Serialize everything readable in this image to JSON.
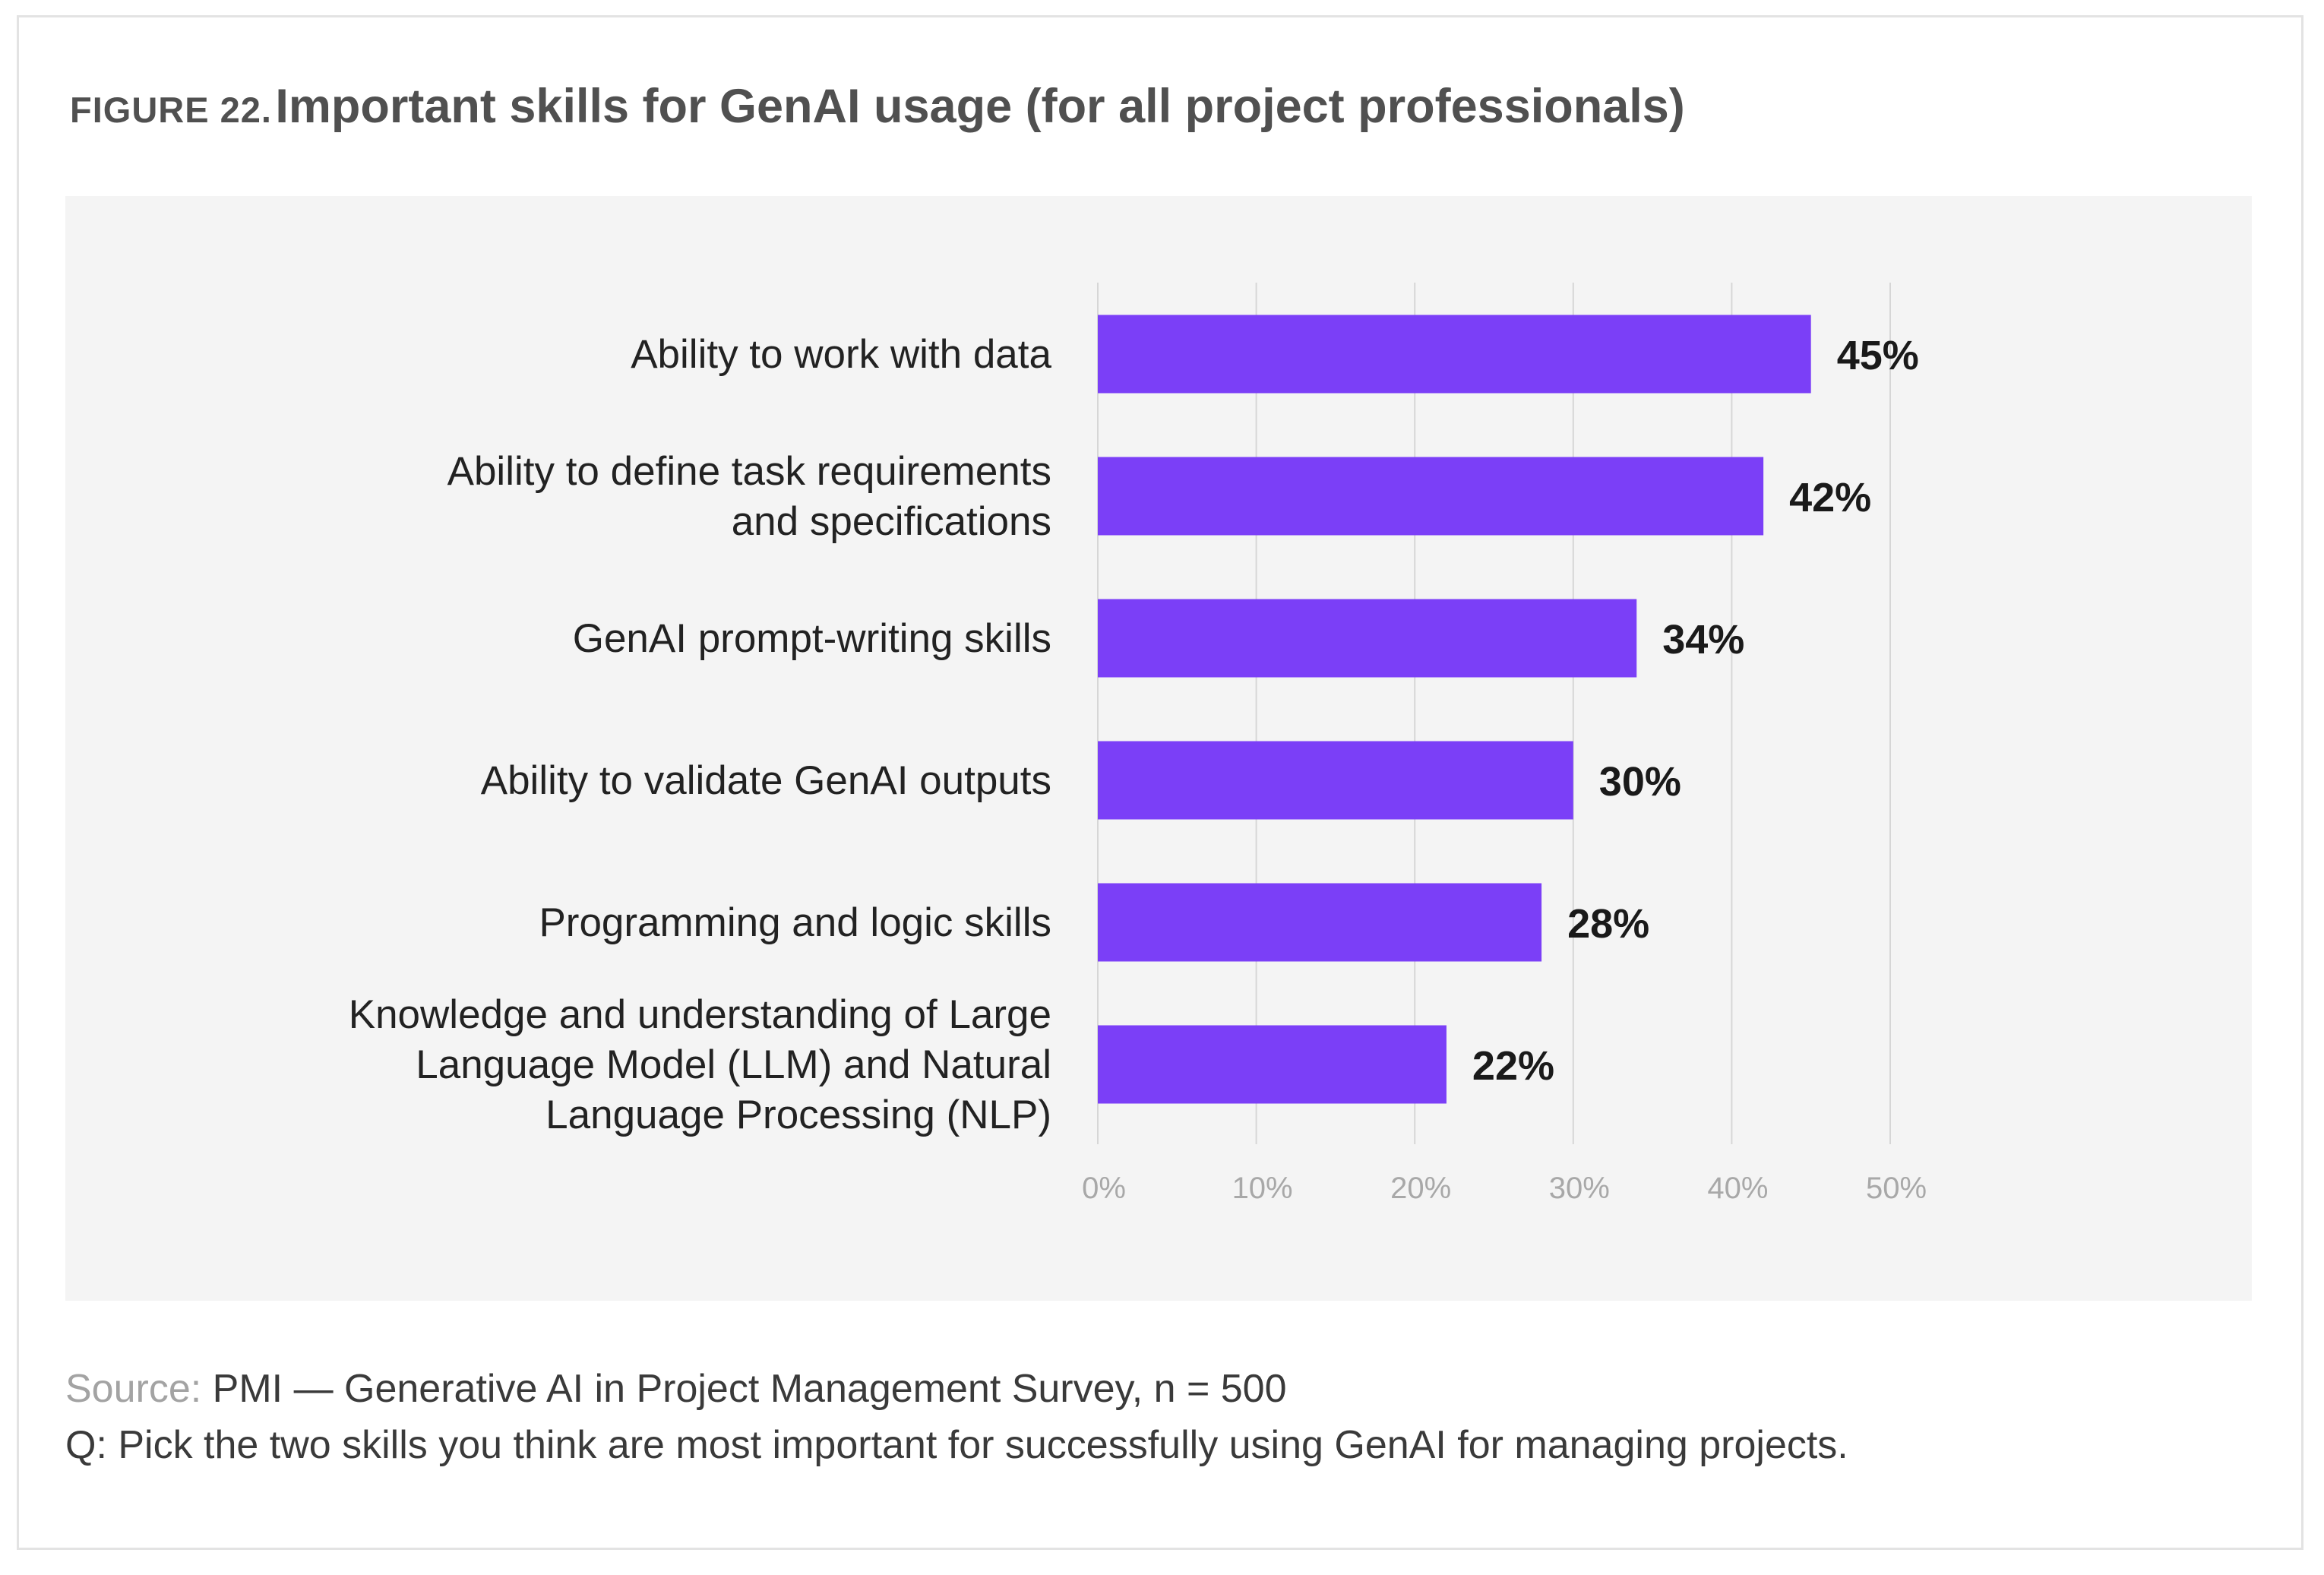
{
  "figure": {
    "label": "FIGURE 22.",
    "title": "Important skills for GenAI usage (for all project professionals)"
  },
  "footer": {
    "source_label": "Source:",
    "source_text": "PMI — Generative AI in Project Management Survey, n = 500",
    "question": "Q: Pick the two skills you think are most important for successfully using GenAI for managing projects."
  },
  "colors": {
    "bar": "#7b3ff7",
    "panel_background": "#f4f4f4",
    "gridline": "#d6d6d6",
    "tick_label": "#a8a8a8",
    "category_label": "#222222",
    "value_label": "#1a1a1a"
  },
  "chart_data": {
    "type": "bar",
    "orientation": "horizontal",
    "categories": [
      [
        "Ability to work with data"
      ],
      [
        "Ability to define task requirements",
        "and specifications"
      ],
      [
        "GenAI prompt-writing skills"
      ],
      [
        "Ability to validate GenAI outputs"
      ],
      [
        "Programming and logic skills"
      ],
      [
        "Knowledge and understanding of Large",
        "Language Model (LLM) and Natural",
        "Language Processing (NLP)"
      ]
    ],
    "values": [
      45,
      42,
      34,
      30,
      28,
      22
    ],
    "value_labels": [
      "45%",
      "42%",
      "34%",
      "30%",
      "28%",
      "22%"
    ],
    "xlim": [
      0,
      50
    ],
    "xticks": [
      0,
      10,
      20,
      30,
      40,
      50
    ],
    "xtick_labels": [
      "0%",
      "10%",
      "20%",
      "30%",
      "40%",
      "50%"
    ],
    "grid": true,
    "legend": "none"
  }
}
